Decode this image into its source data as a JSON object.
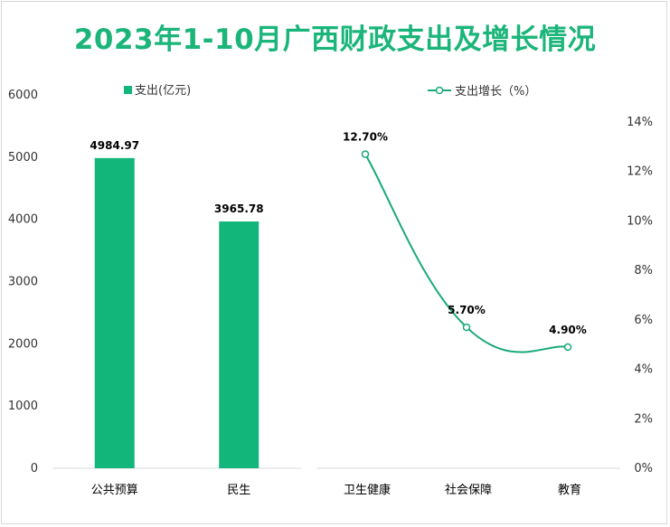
{
  "title": "2023年1-10月广西财政支出及增长情况",
  "colors": {
    "bar": "#12b57a",
    "line": "#1aaa78",
    "title": "#1bb57a"
  },
  "chart_data": [
    {
      "type": "bar",
      "legend": "支出(亿元)",
      "legend_position": "top",
      "categories": [
        "公共预算",
        "民生"
      ],
      "series": [
        {
          "name": "支出(亿元)",
          "values": [
            4984.97,
            3965.78
          ]
        }
      ],
      "value_labels": [
        "4984.97",
        "3965.78"
      ],
      "ylim": [
        0,
        6000
      ],
      "yticks": [
        "0",
        "1000",
        "2000",
        "3000",
        "4000",
        "5000",
        "6000"
      ],
      "grid": false
    },
    {
      "type": "line",
      "legend": "支出增长（%）",
      "legend_position": "top",
      "categories": [
        "卫生健康",
        "社会保障",
        "教育"
      ],
      "series": [
        {
          "name": "支出增长（%）",
          "values": [
            12.7,
            5.7,
            4.9
          ]
        }
      ],
      "value_labels": [
        "12.70%",
        "5.70%",
        "4.90%"
      ],
      "ylim": [
        0,
        14
      ],
      "yticks": [
        "0%",
        "2%",
        "4%",
        "6%",
        "8%",
        "10%",
        "12%",
        "14%"
      ],
      "smooth": true,
      "grid": false
    }
  ]
}
